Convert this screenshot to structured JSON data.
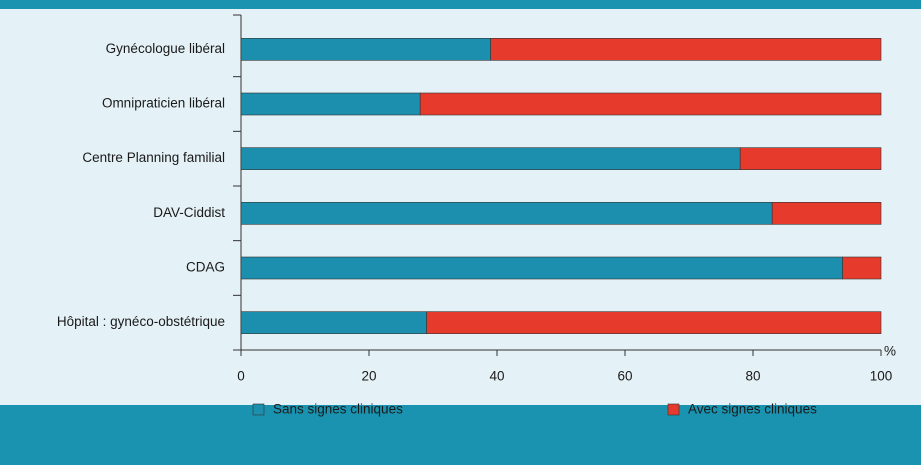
{
  "chart_data": {
    "type": "stacked_barh",
    "categories": [
      "Gynécologue libéral",
      "Omnipraticien libéral",
      "Centre Planning familial",
      "DAV-Ciddist",
      "CDAG",
      "Hôpital : gynéco-obstétrique"
    ],
    "series": [
      {
        "name": "Sans signes cliniques",
        "color": "#1b8fad",
        "values": [
          39,
          28,
          78,
          83,
          94,
          29
        ]
      },
      {
        "name": "Avec signes cliniques",
        "color": "#e63a2c",
        "values": [
          61,
          72,
          22,
          17,
          6,
          71
        ]
      }
    ],
    "xlim": [
      0,
      100
    ],
    "xticks": [
      0,
      20,
      40,
      60,
      80,
      100
    ],
    "x_unit": "%"
  }
}
